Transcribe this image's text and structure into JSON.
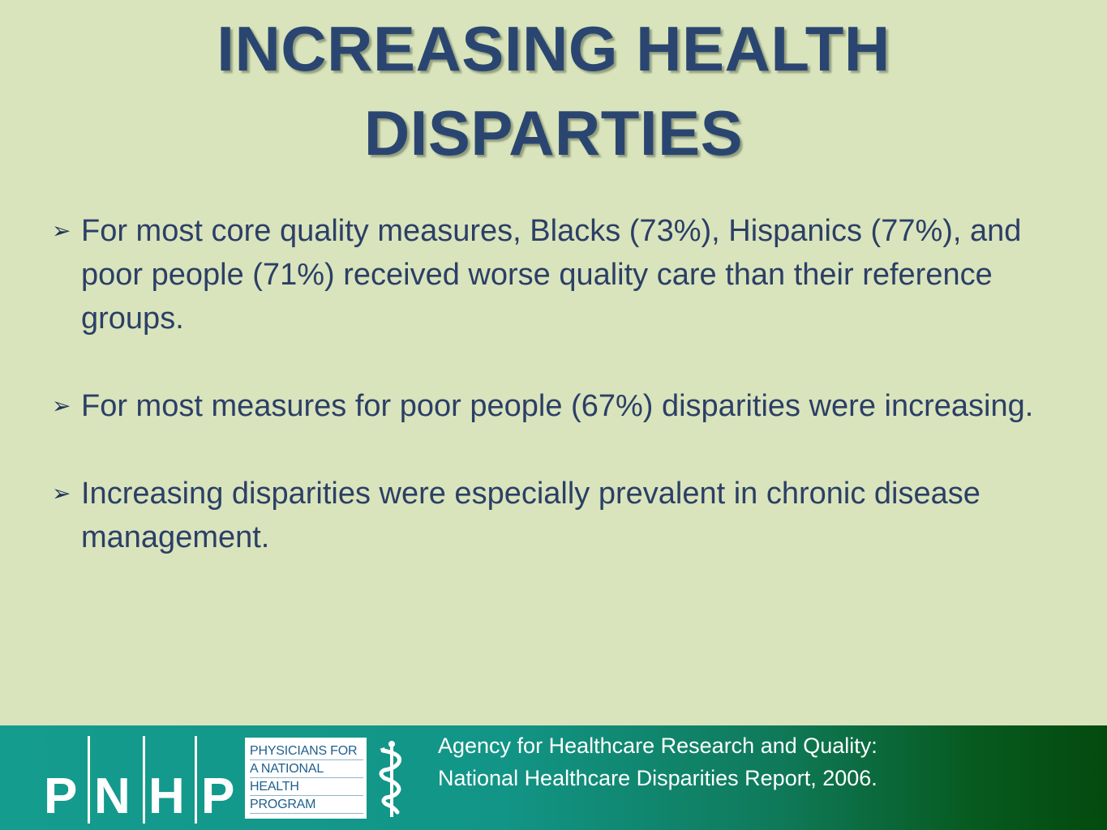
{
  "title": {
    "line1": "INCREASING HEALTH",
    "line2": "DISPARTIES"
  },
  "bullet_marker": "➢",
  "bullets": [
    "For most core quality measures, Blacks (73%), Hispanics (77%), and poor people (71%) received worse quality care than their reference groups.",
    "For most measures for poor people (67%) disparities were increasing.",
    "Increasing disparities were especially prevalent in chronic disease management."
  ],
  "footer": {
    "logo_letters": [
      "P",
      "N",
      "H",
      "P"
    ],
    "org_lines": [
      "PHYSICIANS FOR",
      "A NATIONAL",
      "HEALTH",
      "PROGRAM"
    ],
    "citation_line1": "Agency for Healthcare Research and Quality:",
    "citation_line2": "National Healthcare Disparities Report, 2006."
  },
  "colors": {
    "background": "#d9e4bc",
    "title": "#2a4670",
    "body_text": "#2c3f66",
    "footer_start": "#149c8e",
    "footer_end": "#034a0e"
  }
}
